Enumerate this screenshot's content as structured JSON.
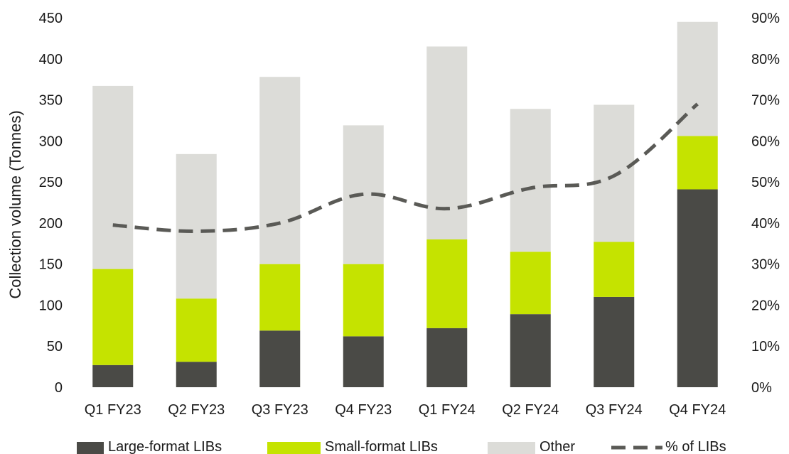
{
  "chart_data": {
    "type": "bar",
    "stacked": true,
    "title": "",
    "xlabel": "",
    "ylabel": "Collection volume (Tonnes)",
    "ylim": [
      0,
      450
    ],
    "y2lim": [
      0,
      90
    ],
    "yticks": [
      "0",
      "50",
      "100",
      "150",
      "200",
      "250",
      "300",
      "350",
      "400",
      "450"
    ],
    "y2ticks": [
      "0%",
      "10%",
      "20%",
      "30%",
      "40%",
      "50%",
      "60%",
      "70%",
      "80%",
      "90%"
    ],
    "categories": [
      "Q1 FY23",
      "Q2 FY23",
      "Q3 FY23",
      "Q4 FY23",
      "Q1 FY24",
      "Q2 FY24",
      "Q3 FY24",
      "Q4 FY24"
    ],
    "series": [
      {
        "name": "Large-format LIBs",
        "values": [
          27,
          31,
          69,
          62,
          72,
          89,
          110,
          241
        ],
        "color": "#4a4a46"
      },
      {
        "name": "Small-format LIBs",
        "values": [
          117,
          77,
          81,
          88,
          108,
          76,
          67,
          65
        ],
        "color": "#c5e300"
      },
      {
        "name": "Other",
        "values": [
          223,
          176,
          228,
          169,
          235,
          174,
          167,
          139
        ],
        "color": "#dcdcd8"
      }
    ],
    "line_series": {
      "name": "% of LIBs",
      "axis": "right",
      "style": "dashed",
      "color": "#5a5a56",
      "values": [
        39.5,
        38,
        40,
        47,
        43.5,
        48.5,
        51.5,
        69
      ]
    },
    "grid": false,
    "legend_position": "bottom"
  }
}
